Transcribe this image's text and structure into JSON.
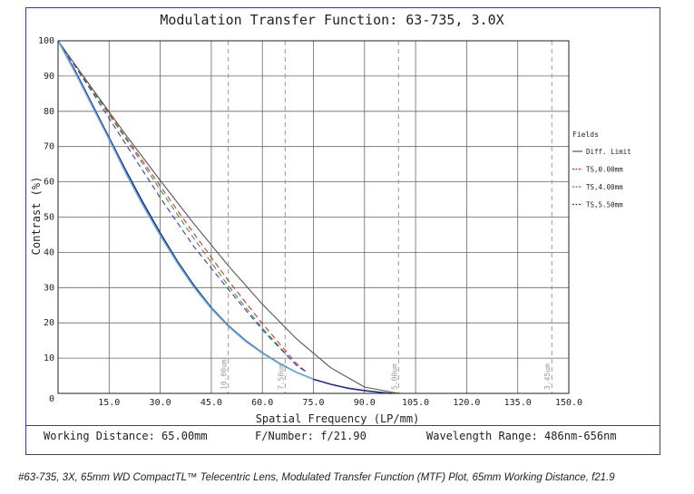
{
  "chart_data": {
    "type": "line",
    "title": "Modulation Transfer Function: 63-735, 3.0X",
    "xlabel": "Spatial Frequency (LP/mm)",
    "ylabel": "Contrast (%)",
    "xlim": [
      0,
      150
    ],
    "ylim": [
      0,
      100
    ],
    "x_ticks": [
      "15.0",
      "30.0",
      "45.0",
      "60.0",
      "75.0",
      "90.0",
      "105.0",
      "120.0",
      "135.0",
      "150.0"
    ],
    "y_ticks": [
      "0",
      "10",
      "20",
      "30",
      "40",
      "50",
      "60",
      "70",
      "80",
      "90",
      "100"
    ],
    "grid": true,
    "legend_title": "Fields",
    "legend_position": "right",
    "series": [
      {
        "name": "Diff. Limit",
        "color": "#555555",
        "dash": "solid",
        "x": [
          0,
          10,
          20,
          30,
          40,
          50,
          60,
          70,
          80,
          90,
          100
        ],
        "y": [
          100,
          86.5,
          73.2,
          60.4,
          48.0,
          36.2,
          25.3,
          15.5,
          7.3,
          1.8,
          0
        ]
      },
      {
        "name": "TS,0.00mm",
        "color": "#d93030",
        "dash": "dashed",
        "x": [
          0,
          10,
          20,
          30,
          40,
          50,
          60,
          70,
          73
        ],
        "y": [
          100,
          86.2,
          72.5,
          58.8,
          45.2,
          32.0,
          19.8,
          8.5,
          6.0
        ]
      },
      {
        "name": "TS,4.00mm",
        "color": "#3a9a3a",
        "dash": "dashed",
        "x": [
          0,
          10,
          20,
          30,
          40,
          50,
          60,
          70,
          73
        ],
        "y": [
          100,
          86.0,
          72.0,
          57.8,
          43.8,
          30.5,
          18.5,
          8.0,
          6.0
        ]
      },
      {
        "name": "TS,5.50mm",
        "color": "#3a3ab8",
        "dash": "dashed",
        "x": [
          0,
          10,
          20,
          30,
          40,
          50,
          60,
          70,
          73
        ],
        "y": [
          100,
          85.5,
          70.5,
          55.5,
          41.5,
          29.5,
          18.0,
          8.0,
          6.0
        ]
      },
      {
        "name": "",
        "color": "#1e2a8c",
        "dash": "solid",
        "x": [
          0,
          5,
          10,
          15,
          20,
          25,
          30,
          35,
          40,
          45,
          50,
          55,
          60,
          65,
          70,
          75,
          80,
          85,
          90,
          95,
          98
        ],
        "y": [
          100,
          91.5,
          82.0,
          72.5,
          63.0,
          54.0,
          45.5,
          37.5,
          30.5,
          24.3,
          19.2,
          15.0,
          11.5,
          8.5,
          6.0,
          4.0,
          2.6,
          1.5,
          0.8,
          0.25,
          0
        ]
      },
      {
        "name": "",
        "color": "#6aaed6",
        "dash": "solid",
        "x": [
          0,
          5,
          10,
          15,
          20,
          25,
          30,
          35,
          40,
          45,
          50,
          55,
          60,
          65,
          70,
          75
        ],
        "y": [
          100,
          91.0,
          81.5,
          72.0,
          62.3,
          53.2,
          44.8,
          37.0,
          30.0,
          24.0,
          19.0,
          14.8,
          11.4,
          8.4,
          6.0,
          4.0
        ]
      }
    ],
    "markers": [
      {
        "x": 50,
        "label": "10.00um"
      },
      {
        "x": 66.7,
        "label": "7.50um"
      },
      {
        "x": 100,
        "label": "5.00um"
      },
      {
        "x": 145,
        "label": "3.45um"
      }
    ]
  },
  "footer": {
    "working_distance": "Working Distance: 65.00mm",
    "f_number": "F/Number: f/21.90",
    "wavelength": "Wavelength Range: 486nm-656nm"
  },
  "caption": "#63-735, 3X, 65mm WD CompactTL™ Telecentric Lens, Modulated Transfer Function (MTF) Plot, 65mm Working Distance, f21.9"
}
